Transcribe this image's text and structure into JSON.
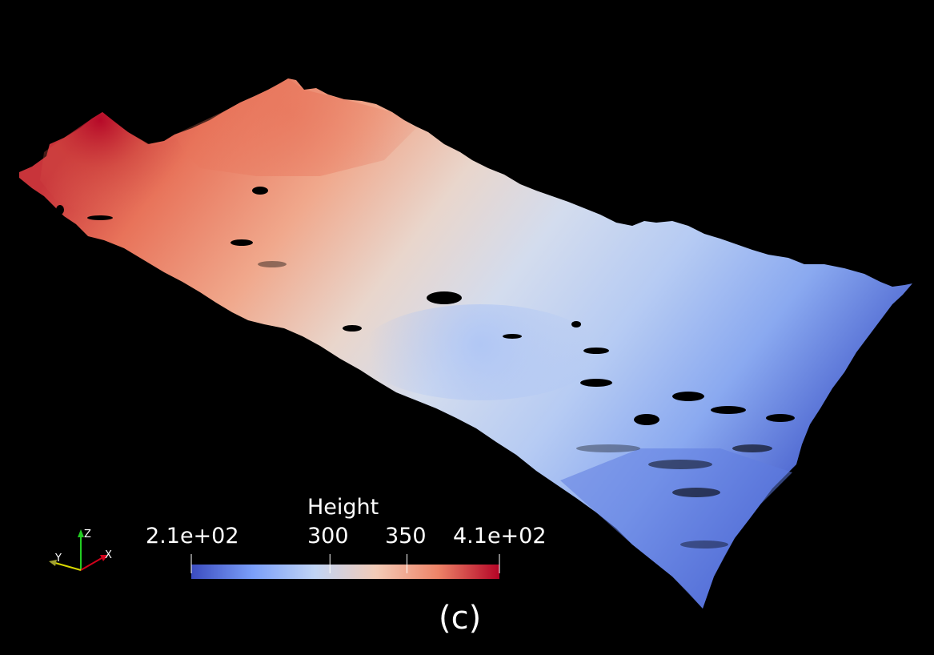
{
  "scalar_bar": {
    "title": "Height",
    "ticks": [
      {
        "label": "2.1e+02",
        "value": 210
      },
      {
        "label": "300",
        "value": 300
      },
      {
        "label": "350",
        "value": 350
      },
      {
        "label": "4.1e+02",
        "value": 410
      }
    ],
    "range": [
      210,
      410
    ],
    "colormap": [
      "#3b4cc0",
      "#7b9ff9",
      "#c0d4f5",
      "#f2cbb7",
      "#ee8468",
      "#b40426"
    ]
  },
  "figure_label": "(c)",
  "axes": {
    "x_label": "X",
    "y_label": "Y",
    "z_label": "Z",
    "x_color": "#d0021b",
    "y_color": "#d8d800",
    "z_color": "#22cc22"
  }
}
